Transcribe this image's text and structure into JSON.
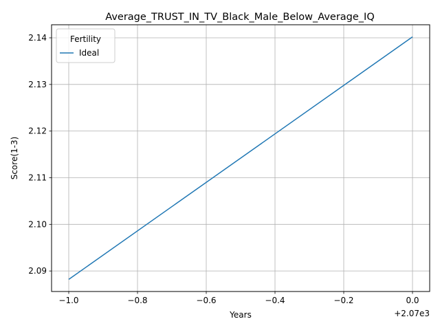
{
  "chart_data": {
    "type": "line",
    "title": "Average_TRUST_IN_TV_Black_Male_Below_Average_IQ",
    "xlabel": "Years",
    "ylabel": "Score(1-3)",
    "x_offset_label": "+2.07e3",
    "x_ticks": [
      -1.0,
      -0.8,
      -0.6,
      -0.4,
      -0.2,
      0.0
    ],
    "x_tick_labels": [
      "−1.0",
      "−0.8",
      "−0.6",
      "−0.4",
      "−0.2",
      "0.0"
    ],
    "y_ticks": [
      2.09,
      2.1,
      2.11,
      2.12,
      2.13,
      2.14
    ],
    "y_tick_labels": [
      "2.09",
      "2.10",
      "2.11",
      "2.12",
      "2.13",
      "2.14"
    ],
    "xlim": [
      -1.05,
      0.05
    ],
    "ylim": [
      2.0856,
      2.1428
    ],
    "grid": true,
    "legend": {
      "title": "Fertility",
      "position": "top-left"
    },
    "series": [
      {
        "name": "Ideal",
        "color": "#1f77b4",
        "x": [
          -1.0,
          0.0
        ],
        "y": [
          2.0882,
          2.1402
        ]
      }
    ]
  }
}
